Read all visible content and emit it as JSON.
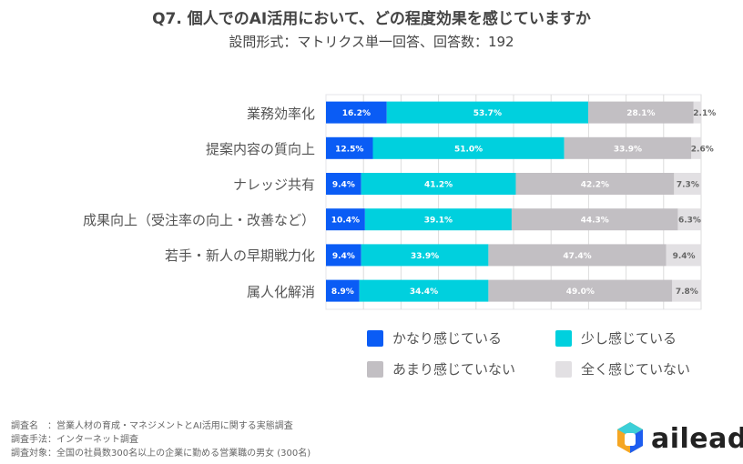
{
  "chart_data": {
    "type": "bar",
    "orientation": "horizontal-stacked",
    "title": "Q7. 個人でのAI活用において、どの程度効果を感じていますか",
    "subtitle": "設問形式：マトリクス単一回答、回答数：192",
    "categories": [
      "業務効率化",
      "提案内容の質向上",
      "ナレッジ共有",
      "成果向上（受注率の向上・改善など）",
      "若手・新人の早期戦力化",
      "属人化解消"
    ],
    "series": [
      {
        "name": "かなり感じている",
        "color": "#0a5cf5",
        "values": [
          16.2,
          12.5,
          9.4,
          10.4,
          9.4,
          8.9
        ]
      },
      {
        "name": "少し感じている",
        "color": "#00d0de",
        "values": [
          53.7,
          51.0,
          41.2,
          39.1,
          33.9,
          34.4
        ]
      },
      {
        "name": "あまり感じていない",
        "color": "#c2bfc3",
        "values": [
          28.1,
          33.9,
          42.2,
          44.3,
          47.4,
          49.0
        ]
      },
      {
        "name": "全く感じていない",
        "color": "#e2e0e3",
        "values": [
          2.1,
          2.6,
          7.3,
          6.3,
          9.4,
          7.8
        ]
      }
    ],
    "xlim": [
      0,
      100
    ],
    "grid": true,
    "legend": "bottom"
  },
  "footer": {
    "line1": "調査名　：営業人材の育成・マネジメントとAI活用に関する実態調査",
    "line2": "調査手法：インターネット調査",
    "line3": "調査対象：全国の社員数300名以上の企業に勤める営業職の男女 (300名)"
  },
  "logo": {
    "text": "ailead"
  }
}
